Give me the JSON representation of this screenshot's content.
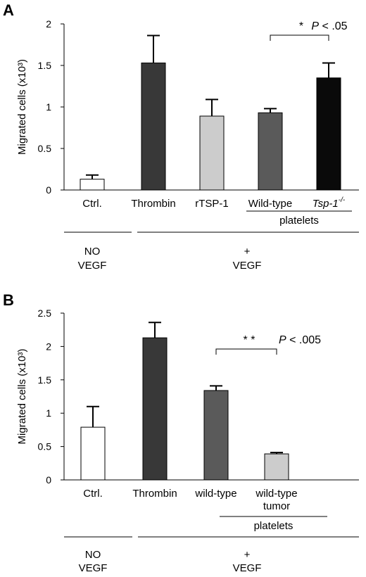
{
  "chart_data": [
    {
      "panel_label": "A",
      "type": "bar",
      "ylabel": "Migrated cells (x10³)",
      "ylim": [
        0,
        2
      ],
      "yticks": [
        "0",
        "0.5",
        "1",
        "1.5",
        "2"
      ],
      "categories": [
        {
          "text": "Ctrl.",
          "italic": false
        },
        {
          "text": "Thrombin",
          "italic": false
        },
        {
          "text": "rTSP-1",
          "italic": false
        },
        {
          "text": "Wild-type",
          "italic": false
        },
        {
          "text": "Tsp-1",
          "sup": "-/-",
          "italic": true
        }
      ],
      "values": [
        0.13,
        1.53,
        0.89,
        0.93,
        1.35
      ],
      "errors": [
        0.05,
        0.33,
        0.2,
        0.05,
        0.18
      ],
      "bar_colors": [
        "#ffffff",
        "#383838",
        "#cccccc",
        "#5a5a5a",
        "#0a0a0a"
      ],
      "significance": {
        "stars": "*",
        "text": "P < .05",
        "between": [
          3,
          4
        ]
      },
      "subgroup": {
        "label": "platelets",
        "spans": [
          3,
          4
        ]
      },
      "groups": [
        {
          "lines": [
            "NO",
            "VEGF"
          ],
          "spans": [
            0,
            0
          ]
        },
        {
          "lines": [
            "+",
            "VEGF"
          ],
          "spans": [
            1,
            4
          ]
        }
      ],
      "grid": false
    },
    {
      "panel_label": "B",
      "type": "bar",
      "ylabel": "Migrated cells (x10³)",
      "ylim": [
        0,
        2.5
      ],
      "yticks": [
        "0",
        "0.5",
        "1",
        "1.5",
        "2",
        "2.5"
      ],
      "categories": [
        {
          "text": "Ctrl.",
          "italic": false
        },
        {
          "text": "Thrombin",
          "italic": false
        },
        {
          "text": "wild-type",
          "italic": false
        },
        {
          "text": "wild-type",
          "text2": "tumor",
          "italic": false
        }
      ],
      "values": [
        0.79,
        2.13,
        1.34,
        0.39
      ],
      "errors": [
        0.31,
        0.23,
        0.07,
        0.02
      ],
      "bar_colors": [
        "#ffffff",
        "#383838",
        "#5a5a5a",
        "#cccccc"
      ],
      "significance": {
        "stars": "* *",
        "text": "P < .005",
        "between": [
          2,
          3
        ]
      },
      "subgroup": {
        "label": "platelets",
        "spans": [
          2,
          3
        ]
      },
      "groups": [
        {
          "lines": [
            "NO",
            "VEGF"
          ],
          "spans": [
            0,
            0
          ]
        },
        {
          "lines": [
            "+",
            "VEGF"
          ],
          "spans": [
            1,
            3
          ]
        }
      ],
      "grid": false
    }
  ]
}
